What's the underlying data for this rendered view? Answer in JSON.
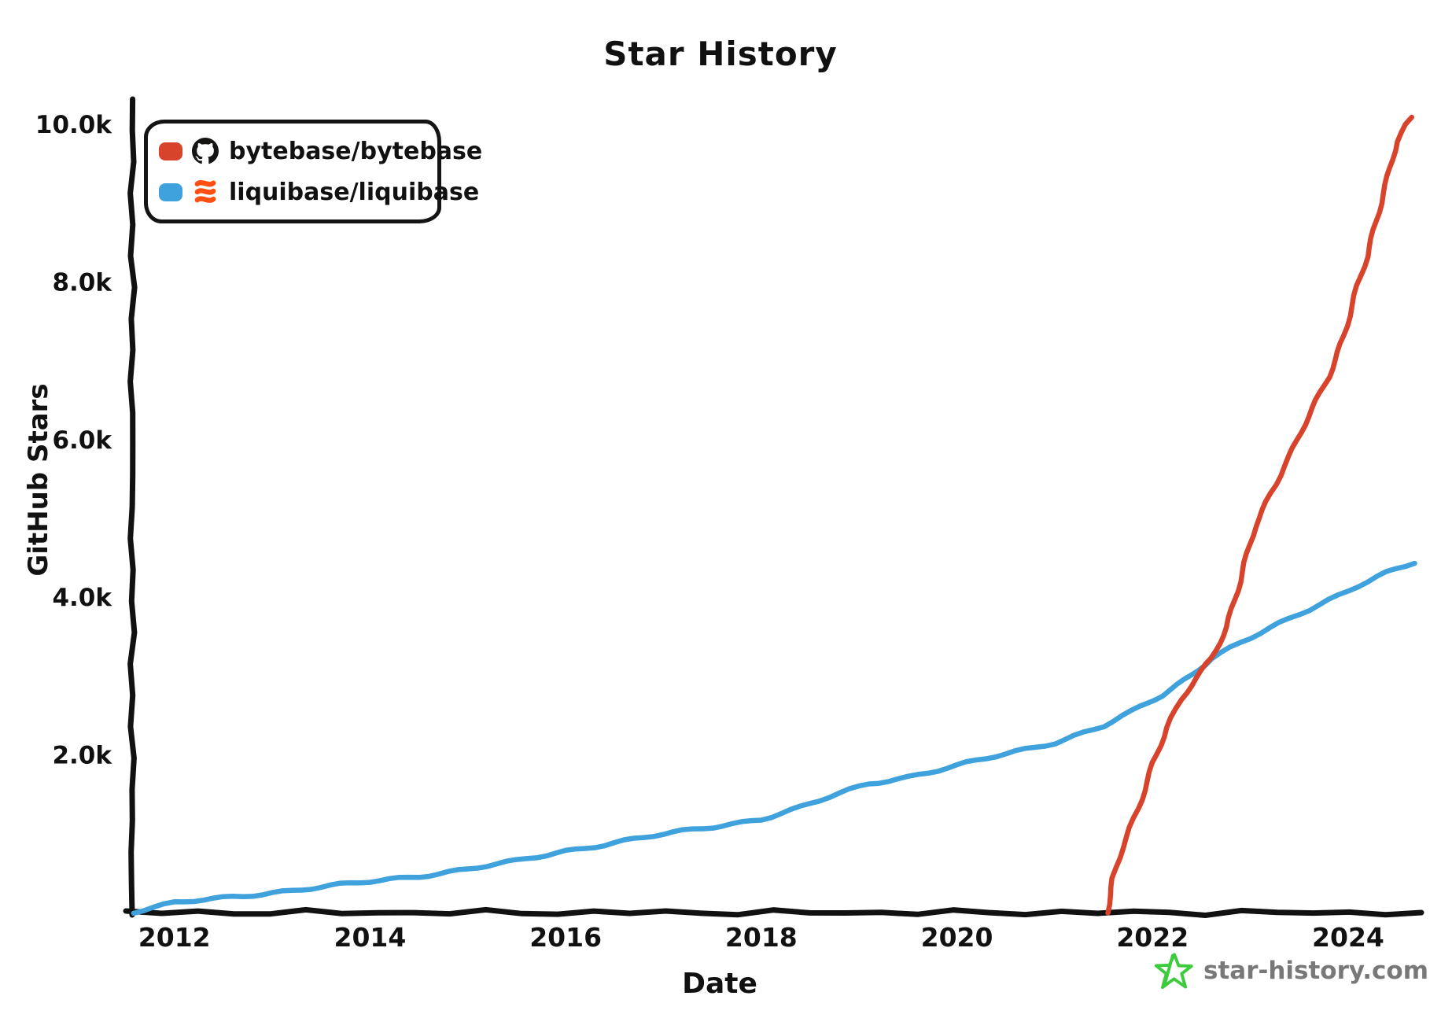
{
  "title": "Star History",
  "watermark": {
    "label": "star-history.com",
    "star_color": "#3CCB3C",
    "text_color": "#787878"
  },
  "legend": {
    "icon_colors": {
      "github": "#161413",
      "liquibase": "#FF4E12"
    },
    "swatch_colors": [
      "#D8432C",
      "#3FA2DC"
    ]
  },
  "axis_color": "#111111",
  "chart_data": {
    "type": "line",
    "title": "Star History",
    "xlabel": "Date",
    "ylabel": "GitHub Stars",
    "xlim": [
      2011.56,
      2024.74
    ],
    "ylim": [
      0,
      10300
    ],
    "grid": false,
    "legend_position": "top-left",
    "x_ticks": [
      {
        "value": 2012,
        "label": "2012"
      },
      {
        "value": 2014,
        "label": "2014"
      },
      {
        "value": 2016,
        "label": "2016"
      },
      {
        "value": 2018,
        "label": "2018"
      },
      {
        "value": 2020,
        "label": "2020"
      },
      {
        "value": 2022,
        "label": "2022"
      },
      {
        "value": 2024,
        "label": "2024"
      }
    ],
    "y_ticks": [
      {
        "value": 2000,
        "label": "2.0k"
      },
      {
        "value": 4000,
        "label": "4.0k"
      },
      {
        "value": 6000,
        "label": "6.0k"
      },
      {
        "value": 8000,
        "label": "8.0k"
      },
      {
        "value": 10000,
        "label": "10.0k"
      }
    ],
    "series": [
      {
        "name": "bytebase/bytebase",
        "color": "#D8432C",
        "icon": "github-icon",
        "points": [
          [
            2021.53,
            0
          ],
          [
            2021.6,
            430
          ],
          [
            2021.7,
            830
          ],
          [
            2021.85,
            1320
          ],
          [
            2022.0,
            1900
          ],
          [
            2022.15,
            2340
          ],
          [
            2022.3,
            2700
          ],
          [
            2022.45,
            2980
          ],
          [
            2022.6,
            3230
          ],
          [
            2022.75,
            3620
          ],
          [
            2022.9,
            4200
          ],
          [
            2023.05,
            4900
          ],
          [
            2023.2,
            5320
          ],
          [
            2023.4,
            5790
          ],
          [
            2023.6,
            6290
          ],
          [
            2023.8,
            6800
          ],
          [
            2023.95,
            7320
          ],
          [
            2024.1,
            7950
          ],
          [
            2024.2,
            8320
          ],
          [
            2024.35,
            9120
          ],
          [
            2024.5,
            9780
          ],
          [
            2024.65,
            10090
          ]
        ]
      },
      {
        "name": "liquibase/liquibase",
        "color": "#3FA2DC",
        "icon": "liquibase-icon",
        "points": [
          [
            2011.58,
            10
          ],
          [
            2012,
            120
          ],
          [
            2012.5,
            185
          ],
          [
            2013,
            255
          ],
          [
            2013.5,
            322
          ],
          [
            2014,
            392
          ],
          [
            2014.5,
            465
          ],
          [
            2015,
            552
          ],
          [
            2015.5,
            652
          ],
          [
            2016,
            782
          ],
          [
            2016.5,
            888
          ],
          [
            2017,
            992
          ],
          [
            2017.5,
            1088
          ],
          [
            2018,
            1188
          ],
          [
            2018.4,
            1330
          ],
          [
            2018.8,
            1510
          ],
          [
            2019.1,
            1640
          ],
          [
            2019.5,
            1722
          ],
          [
            2020,
            1860
          ],
          [
            2020.5,
            2015
          ],
          [
            2021,
            2160
          ],
          [
            2021.5,
            2365
          ],
          [
            2021.8,
            2550
          ],
          [
            2022.1,
            2760
          ],
          [
            2022.4,
            3020
          ],
          [
            2022.6,
            3230
          ],
          [
            2022.9,
            3420
          ],
          [
            2023.2,
            3600
          ],
          [
            2023.5,
            3790
          ],
          [
            2023.8,
            3970
          ],
          [
            2024.1,
            4150
          ],
          [
            2024.4,
            4310
          ],
          [
            2024.68,
            4430
          ]
        ]
      }
    ]
  }
}
